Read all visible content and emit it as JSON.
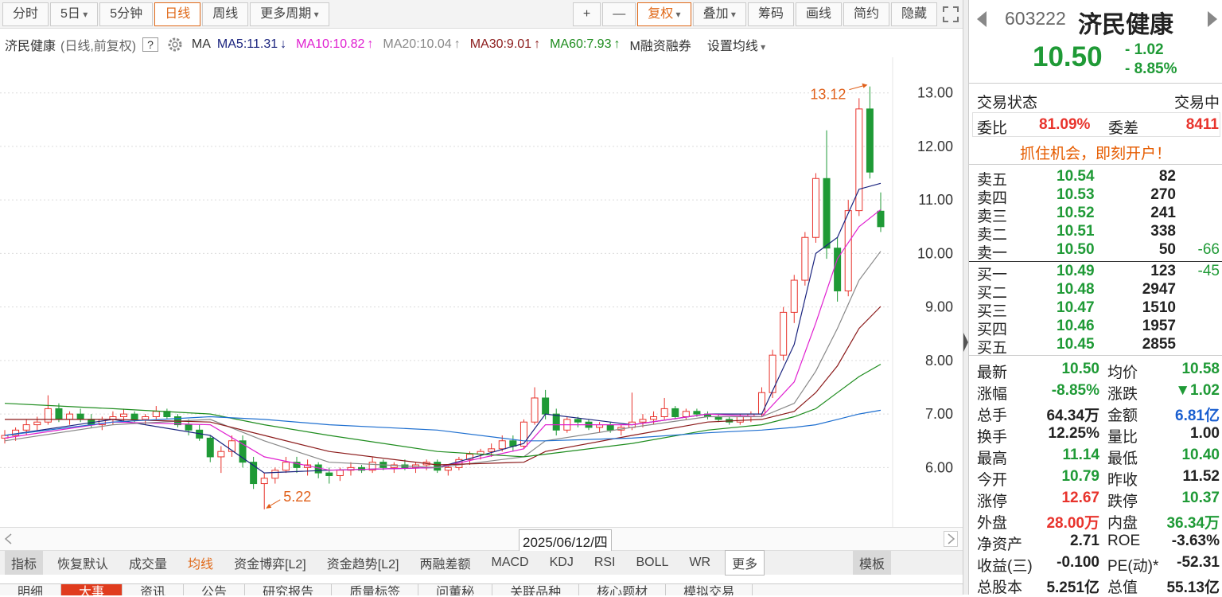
{
  "toolbar": {
    "periods": [
      "分时",
      "5日",
      "5分钟",
      "日线",
      "周线",
      "更多周期"
    ],
    "active_period": 3,
    "tools": [
      "+",
      "—",
      "复权",
      "叠加",
      "筹码",
      "画线",
      "简约",
      "隐藏"
    ]
  },
  "info": {
    "name": "济民健康",
    "mode": "(日线,前复权)",
    "help": "?",
    "ma": "MA",
    "margin": "M融资融券",
    "set_ma": "设置均线"
  },
  "chart_data": {
    "type": "candlestick",
    "ohlc": [
      [
        6.55,
        6.7,
        6.45,
        6.6
      ],
      [
        6.6,
        6.75,
        6.5,
        6.7
      ],
      [
        6.7,
        6.9,
        6.6,
        6.8
      ],
      [
        6.8,
        6.95,
        6.7,
        6.85
      ],
      [
        6.85,
        7.35,
        6.8,
        7.1
      ],
      [
        7.1,
        7.2,
        6.85,
        6.9
      ],
      [
        6.9,
        7.05,
        6.8,
        7.0
      ],
      [
        7.0,
        7.1,
        6.85,
        6.9
      ],
      [
        6.9,
        7.0,
        6.75,
        6.8
      ],
      [
        6.8,
        6.95,
        6.7,
        6.9
      ],
      [
        6.9,
        7.05,
        6.8,
        6.95
      ],
      [
        6.95,
        7.1,
        6.85,
        7.0
      ],
      [
        7.0,
        7.05,
        6.85,
        6.9
      ],
      [
        6.9,
        7.0,
        6.8,
        6.95
      ],
      [
        6.95,
        7.15,
        6.9,
        7.05
      ],
      [
        7.05,
        7.1,
        6.9,
        6.95
      ],
      [
        6.95,
        7.0,
        6.75,
        6.8
      ],
      [
        6.8,
        6.9,
        6.6,
        6.7
      ],
      [
        6.7,
        6.8,
        6.5,
        6.55
      ],
      [
        6.55,
        6.6,
        6.1,
        6.2
      ],
      [
        6.2,
        6.4,
        5.9,
        6.3
      ],
      [
        6.3,
        6.6,
        6.2,
        6.5
      ],
      [
        6.5,
        6.6,
        6.0,
        6.1
      ],
      [
        6.1,
        6.2,
        5.6,
        5.7
      ],
      [
        5.7,
        5.9,
        5.22,
        5.8
      ],
      [
        5.8,
        6.0,
        5.7,
        5.95
      ],
      [
        5.95,
        6.2,
        5.9,
        6.1
      ],
      [
        6.1,
        6.2,
        5.9,
        6.0
      ],
      [
        6.0,
        6.15,
        5.85,
        6.05
      ],
      [
        6.05,
        6.1,
        5.8,
        5.9
      ],
      [
        5.9,
        6.0,
        5.7,
        5.85
      ],
      [
        5.85,
        6.0,
        5.75,
        5.95
      ],
      [
        5.95,
        6.1,
        5.85,
        6.0
      ],
      [
        6.0,
        6.05,
        5.9,
        5.95
      ],
      [
        5.95,
        6.2,
        5.9,
        6.1
      ],
      [
        6.1,
        6.15,
        5.95,
        6.0
      ],
      [
        6.0,
        6.1,
        5.9,
        6.05
      ],
      [
        6.05,
        6.15,
        5.95,
        6.0
      ],
      [
        6.0,
        6.1,
        5.9,
        6.05
      ],
      [
        6.05,
        6.15,
        5.95,
        6.1
      ],
      [
        6.1,
        6.15,
        5.9,
        5.95
      ],
      [
        5.95,
        6.05,
        5.85,
        6.0
      ],
      [
        6.0,
        6.2,
        5.95,
        6.15
      ],
      [
        6.15,
        6.3,
        6.05,
        6.25
      ],
      [
        6.25,
        6.35,
        6.15,
        6.3
      ],
      [
        6.3,
        6.45,
        6.2,
        6.35
      ],
      [
        6.35,
        6.6,
        6.3,
        6.5
      ],
      [
        6.5,
        6.6,
        6.3,
        6.4
      ],
      [
        6.4,
        6.9,
        6.35,
        6.85
      ],
      [
        6.85,
        7.5,
        6.8,
        7.3
      ],
      [
        7.3,
        7.45,
        6.9,
        7.0
      ],
      [
        7.0,
        7.1,
        6.6,
        6.7
      ],
      [
        6.7,
        6.95,
        6.65,
        6.9
      ],
      [
        6.9,
        6.95,
        6.75,
        6.85
      ],
      [
        6.85,
        6.9,
        6.7,
        6.75
      ],
      [
        6.75,
        6.85,
        6.65,
        6.8
      ],
      [
        6.8,
        6.85,
        6.65,
        6.7
      ],
      [
        6.7,
        6.8,
        6.6,
        6.75
      ],
      [
        6.75,
        7.4,
        6.7,
        6.85
      ],
      [
        6.85,
        7.0,
        6.75,
        6.9
      ],
      [
        6.9,
        7.05,
        6.8,
        6.95
      ],
      [
        6.95,
        7.3,
        6.9,
        7.1
      ],
      [
        7.1,
        7.15,
        6.9,
        6.95
      ],
      [
        6.95,
        7.1,
        6.9,
        7.05
      ],
      [
        7.05,
        7.1,
        6.95,
        7.0
      ],
      [
        7.0,
        7.05,
        6.9,
        6.95
      ],
      [
        6.95,
        7.0,
        6.85,
        6.9
      ],
      [
        6.9,
        6.95,
        6.8,
        6.85
      ],
      [
        6.85,
        7.0,
        6.8,
        6.95
      ],
      [
        6.95,
        7.05,
        6.85,
        7.0
      ],
      [
        7.0,
        7.5,
        6.95,
        7.4
      ],
      [
        7.4,
        8.2,
        7.3,
        8.1
      ],
      [
        8.1,
        9.0,
        8.0,
        8.9
      ],
      [
        8.9,
        9.6,
        8.7,
        9.5
      ],
      [
        9.5,
        10.4,
        9.4,
        10.3
      ],
      [
        10.3,
        11.5,
        10.2,
        11.4
      ],
      [
        11.4,
        12.3,
        9.9,
        10.1
      ],
      [
        10.1,
        10.3,
        9.1,
        9.3
      ],
      [
        9.3,
        11.0,
        9.2,
        10.8
      ],
      [
        10.8,
        12.9,
        10.7,
        12.7
      ],
      [
        12.7,
        13.12,
        11.4,
        11.52
      ],
      [
        10.79,
        11.14,
        10.4,
        10.5
      ]
    ],
    "up_color": "#e8332c",
    "down_color": "#1f9a36",
    "ylim": [
      4.92,
      13.62
    ],
    "yticks": [
      {
        "value": 6,
        "label": "6.00"
      },
      {
        "value": 7,
        "label": "7.00"
      },
      {
        "value": 8,
        "label": "8.00"
      },
      {
        "value": 9,
        "label": "9.00"
      },
      {
        "value": 10,
        "label": "10.00"
      },
      {
        "value": 11,
        "label": "11.00"
      },
      {
        "value": 12,
        "label": "12.00"
      },
      {
        "value": 13,
        "label": "13.00"
      }
    ],
    "grid": true,
    "series": [
      {
        "name": "MA5:11.31",
        "trend": "↓",
        "color": "#1a237e",
        "x": [
          0,
          10,
          19,
          24,
          30,
          40,
          48,
          50,
          58,
          65,
          70,
          73,
          75,
          77,
          79,
          81
        ],
        "values": [
          6.6,
          6.9,
          6.6,
          5.9,
          5.95,
          6.0,
          6.45,
          7.0,
          6.8,
          7.0,
          7.0,
          8.3,
          10.0,
          10.3,
          11.2,
          11.31
        ]
      },
      {
        "name": "MA10:10.82",
        "trend": "↑",
        "color": "#e020d0",
        "x": [
          0,
          10,
          19,
          24,
          30,
          40,
          48,
          50,
          58,
          65,
          70,
          73,
          75,
          77,
          79,
          81
        ],
        "values": [
          6.55,
          6.85,
          6.8,
          6.2,
          5.95,
          6.0,
          6.35,
          6.8,
          6.8,
          7.0,
          6.95,
          7.6,
          8.7,
          9.9,
          10.5,
          10.82
        ]
      },
      {
        "name": "MA20:10.04",
        "trend": "↑",
        "color": "#888888",
        "x": [
          0,
          10,
          19,
          24,
          30,
          40,
          48,
          50,
          58,
          65,
          70,
          73,
          75,
          77,
          79,
          81
        ],
        "values": [
          6.5,
          6.8,
          6.9,
          6.5,
          6.1,
          6.0,
          6.2,
          6.5,
          6.75,
          6.95,
          6.95,
          7.2,
          7.8,
          8.6,
          9.5,
          10.04
        ]
      },
      {
        "name": "MA30:9.01",
        "trend": "↑",
        "color": "#8b1a1a",
        "x": [
          0,
          10,
          19,
          24,
          30,
          40,
          48,
          50,
          58,
          65,
          70,
          73,
          75,
          77,
          79,
          81
        ],
        "values": [
          6.9,
          6.9,
          6.85,
          6.6,
          6.3,
          6.05,
          6.1,
          6.3,
          6.6,
          6.85,
          6.9,
          7.05,
          7.4,
          7.9,
          8.6,
          9.01
        ]
      },
      {
        "name": "MA60:7.93",
        "trend": "↑",
        "color": "#1e8c1e",
        "x": [
          0,
          10,
          19,
          24,
          30,
          40,
          48,
          50,
          58,
          65,
          70,
          73,
          75,
          77,
          79,
          81
        ],
        "values": [
          7.2,
          7.1,
          7.0,
          6.8,
          6.6,
          6.3,
          6.2,
          6.25,
          6.45,
          6.7,
          6.8,
          6.95,
          7.1,
          7.4,
          7.7,
          7.93
        ]
      },
      {
        "color": "#1e6fd0",
        "x": [
          0,
          10,
          19,
          24,
          30,
          40,
          48,
          50,
          58,
          65,
          70,
          73,
          75,
          77,
          79,
          81
        ],
        "values": [
          6.6,
          6.85,
          6.95,
          6.9,
          6.8,
          6.7,
          6.5,
          6.5,
          6.55,
          6.65,
          6.7,
          6.75,
          6.8,
          6.9,
          7.0,
          7.07
        ]
      }
    ],
    "annotations": [
      {
        "text": "13.12",
        "x": 80,
        "y": 13.12,
        "color": "#e0601a"
      },
      {
        "text": "5.22",
        "x": 24,
        "y": 5.22,
        "color": "#e0601a"
      }
    ],
    "cursor_date": "2025/06/12/四"
  },
  "tabs": {
    "items": [
      "指标",
      "恢复默认",
      "成交量",
      "均线",
      "资金博弈[L2]",
      "资金趋势[L2]",
      "两融差额",
      "MACD",
      "KDJ",
      "RSI",
      "BOLL",
      "WR",
      "更多"
    ],
    "selected": 0,
    "active": 3,
    "template": "模板"
  },
  "bottom_tabs": {
    "items": [
      "明细",
      "大事",
      "资讯",
      "公告",
      "研究报告",
      "质量标签",
      "问董秘",
      "关联品种",
      "核心题材",
      "模拟交易"
    ],
    "active": 1
  },
  "quote": {
    "code": "603222",
    "name": "济民健康",
    "price": "10.50",
    "change": "- 1.02",
    "pct": "- 8.85%",
    "status_label": "交易状态",
    "status": "交易中",
    "wb_label": "委比",
    "wb": "81.09%",
    "wc_label": "委差",
    "wc": "8411",
    "promo": "抓住机会，即刻开户！",
    "asks": [
      {
        "label": "卖五",
        "price": "10.54",
        "volume": "82"
      },
      {
        "label": "卖四",
        "price": "10.53",
        "volume": "270"
      },
      {
        "label": "卖三",
        "price": "10.52",
        "volume": "241"
      },
      {
        "label": "卖二",
        "price": "10.51",
        "volume": "338"
      },
      {
        "label": "卖一",
        "price": "10.50",
        "volume": "50",
        "change": "-66"
      }
    ],
    "bids": [
      {
        "label": "买一",
        "price": "10.49",
        "volume": "123",
        "change": "-45"
      },
      {
        "label": "买二",
        "price": "10.48",
        "volume": "2947"
      },
      {
        "label": "买三",
        "price": "10.47",
        "volume": "1510"
      },
      {
        "label": "买四",
        "price": "10.46",
        "volume": "1957"
      },
      {
        "label": "买五",
        "price": "10.45",
        "volume": "2855"
      }
    ],
    "stats": [
      [
        {
          "label": "最新",
          "value": "10.50",
          "color": "#1f9a36"
        },
        {
          "label": "均价",
          "value": "10.58",
          "color": "#1f9a36"
        }
      ],
      [
        {
          "label": "涨幅",
          "value": "-8.85%",
          "color": "#1f9a36"
        },
        {
          "label": "涨跌",
          "value": "▼1.02",
          "color": "#1f9a36"
        }
      ],
      [
        {
          "label": "总手",
          "value": "64.34万",
          "color": "#222222"
        },
        {
          "label": "金额",
          "value": "6.81亿",
          "color": "#1a5fd0"
        }
      ],
      [
        {
          "label": "换手",
          "value": "12.25%",
          "color": "#222222"
        },
        {
          "label": "量比",
          "value": "1.00",
          "color": "#222222"
        }
      ],
      [
        {
          "label": "最高",
          "value": "11.14",
          "color": "#1f9a36"
        },
        {
          "label": "最低",
          "value": "10.40",
          "color": "#1f9a36"
        }
      ],
      [
        {
          "label": "今开",
          "value": "10.79",
          "color": "#1f9a36"
        },
        {
          "label": "昨收",
          "value": "11.52",
          "color": "#222222"
        }
      ],
      [
        {
          "label": "涨停",
          "value": "12.67",
          "color": "#e8332c"
        },
        {
          "label": "跌停",
          "value": "10.37",
          "color": "#1f9a36"
        }
      ],
      [
        {
          "label": "外盘",
          "value": "28.00万",
          "color": "#e8332c"
        },
        {
          "label": "内盘",
          "value": "36.34万",
          "color": "#1f9a36"
        }
      ],
      [
        {
          "label": "净资产",
          "value": "2.71",
          "color": "#222222"
        },
        {
          "label": "ROE",
          "value": "-3.63%",
          "color": "#222222"
        }
      ],
      [
        {
          "label": "收益(三)",
          "value": "-0.100",
          "color": "#222222"
        },
        {
          "label": "PE(动)*",
          "value": "-52.31",
          "color": "#222222"
        }
      ],
      [
        {
          "label": "总股本",
          "value": "5.251亿",
          "color": "#222222"
        },
        {
          "label": "总值",
          "value": "55.13亿",
          "color": "#222222"
        }
      ]
    ]
  }
}
